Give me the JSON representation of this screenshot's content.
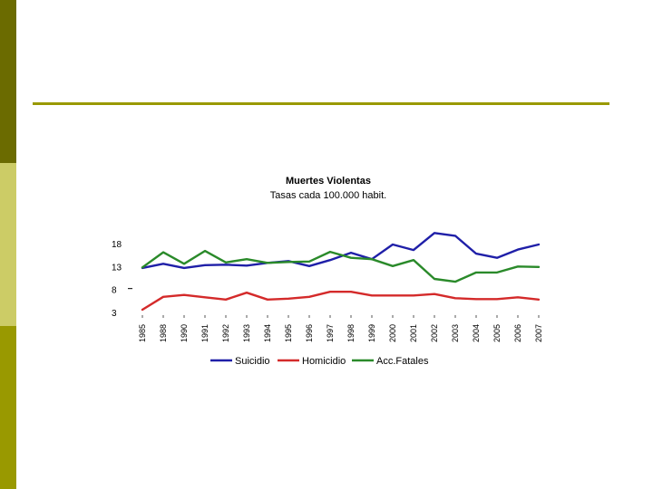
{
  "colors": {
    "sidebar_dark": "#6b6b00",
    "sidebar_light": "#cccc66",
    "sidebar_mid": "#999900",
    "rule": "#999900"
  },
  "chart_data": {
    "type": "line",
    "title": "Muertes Violentas",
    "subtitle": "Tasas cada 100.000 habit.",
    "xlabel": "",
    "ylabel": "",
    "categories": [
      "1985",
      "1988",
      "1990",
      "1991",
      "1992",
      "1993",
      "1994",
      "1995",
      "1996",
      "1997",
      "1998",
      "1999",
      "2000",
      "2001",
      "2002",
      "2003",
      "2004",
      "2005",
      "2006",
      "2007"
    ],
    "yticks": [
      18,
      13,
      8,
      3
    ],
    "ylim": [
      3,
      18
    ],
    "grid": false,
    "legend_position": "bottom",
    "series": [
      {
        "name": "Suicidio",
        "color": "#1f1fa8",
        "values": [
          12.7,
          13.6,
          12.7,
          13.3,
          13.4,
          13.2,
          13.8,
          14.2,
          13.1,
          14.4,
          16.0,
          14.6,
          17.8,
          16.6,
          20.3,
          19.7,
          15.8,
          14.9,
          16.7,
          17.8
        ]
      },
      {
        "name": "Homicidio",
        "color": "#d42a2a",
        "values": [
          3.6,
          6.4,
          6.8,
          6.3,
          5.8,
          7.3,
          5.8,
          6.0,
          6.4,
          7.5,
          7.5,
          6.7,
          6.7,
          6.7,
          7.0,
          6.1,
          5.9,
          5.9,
          6.3,
          5.8
        ]
      },
      {
        "name": "Acc.Fatales",
        "color": "#2a8a2a",
        "values": [
          12.8,
          16.1,
          13.6,
          16.4,
          13.9,
          14.6,
          13.8,
          14.0,
          14.1,
          16.2,
          14.9,
          14.6,
          13.1,
          14.4,
          10.3,
          9.7,
          11.7,
          11.7,
          13.0,
          12.9
        ]
      }
    ]
  }
}
